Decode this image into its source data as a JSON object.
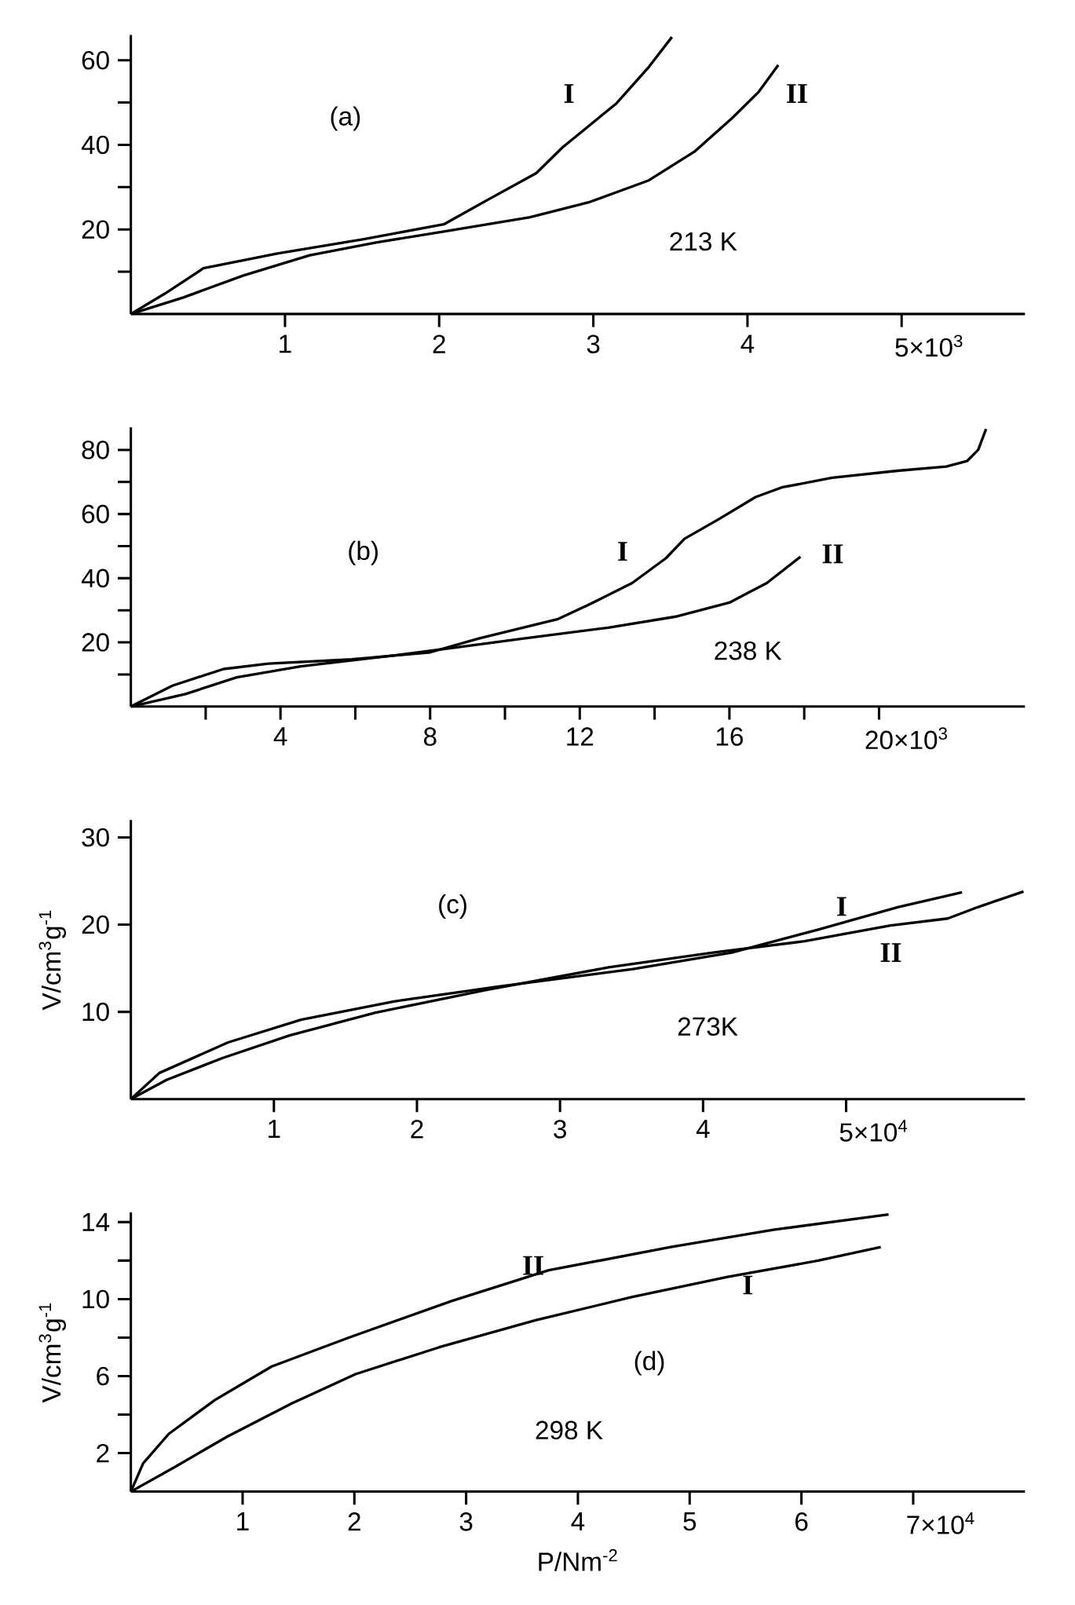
{
  "chart_data": [
    {
      "type": "line",
      "annotations": [
        "(a)",
        "213 K",
        "×10$^{3}$"
      ],
      "xlim": [
        0,
        5.8
      ],
      "ylim": [
        0,
        66
      ],
      "xticks": [
        1,
        2,
        3,
        4,
        5
      ],
      "yticks": [
        20,
        40,
        60
      ],
      "series": [
        {
          "name": "I",
          "color": "#000000",
          "x": [
            0,
            0.22,
            0.47,
            0.95,
            1.51,
            2.03,
            2.33,
            2.63,
            2.8,
            3.15,
            3.36,
            3.51
          ],
          "values": [
            0,
            4.8,
            10.8,
            14.3,
            17.7,
            21.2,
            27.3,
            33.3,
            39.4,
            49.8,
            58.4,
            65.5
          ]
        },
        {
          "name": "II",
          "color": "#000000",
          "x": [
            0,
            0.34,
            0.73,
            1.16,
            1.59,
            2.03,
            2.59,
            2.97,
            3.36,
            3.66,
            3.9,
            4.07,
            4.2
          ],
          "values": [
            0,
            3.9,
            9.1,
            13.9,
            16.9,
            19.5,
            22.9,
            26.4,
            31.6,
            38.5,
            46.3,
            52.4,
            58.9
          ]
        }
      ]
    },
    {
      "type": "line",
      "annotations": [
        "(b)",
        "238 K",
        "×10$^{3}$"
      ],
      "xlim": [
        0,
        23.9
      ],
      "ylim": [
        0,
        87
      ],
      "xticks": [
        4,
        8,
        12,
        16,
        20
      ],
      "yticks": [
        20,
        40,
        60,
        80
      ],
      "series": [
        {
          "name": "I",
          "color": "#000000",
          "x": [
            0,
            1.11,
            2.48,
            3.68,
            5.9,
            8.0,
            9.3,
            11.4,
            12.2,
            13.4,
            14.3,
            14.8,
            15.7,
            16.7,
            17.4,
            18.75,
            20.5,
            21.8,
            22.35,
            22.65,
            22.86
          ],
          "values": [
            0,
            6.5,
            11.7,
            13.4,
            14.7,
            16.9,
            21.2,
            27.2,
            31.5,
            38.5,
            46.2,
            52.3,
            58.3,
            65.3,
            68.3,
            71.3,
            73.5,
            74.8,
            76.5,
            80,
            86.5
          ]
        },
        {
          "name": "II",
          "color": "#000000",
          "x": [
            0,
            1.46,
            2.83,
            4.54,
            7.1,
            8.8,
            10.5,
            12.76,
            14.6,
            16.0,
            17.0,
            17.9
          ],
          "values": [
            0,
            3.9,
            9.1,
            12.5,
            16.0,
            18.6,
            21.2,
            24.6,
            28.1,
            32.4,
            38.5,
            46.7
          ]
        }
      ]
    },
    {
      "type": "line",
      "annotations": [
        "(c)",
        "273K",
        "×10$^{4}$"
      ],
      "ylabel": "V/cm$^{3}$g$^{-1}$",
      "xlim": [
        0,
        6.25
      ],
      "ylim": [
        0,
        32
      ],
      "xticks": [
        1,
        2,
        3,
        4,
        5
      ],
      "yticks": [
        10,
        20,
        30
      ],
      "series": [
        {
          "name": "I",
          "color": "#000000",
          "x": [
            0,
            0.2,
            0.68,
            1.19,
            1.84,
            2.57,
            3.51,
            4.2,
            4.8,
            5.36,
            5.81
          ],
          "values": [
            0,
            3.0,
            6.5,
            9.1,
            11.2,
            12.9,
            14.9,
            16.8,
            19.4,
            22.0,
            23.7
          ]
        },
        {
          "name": "II",
          "color": "#000000",
          "x": [
            0,
            0.25,
            0.64,
            1.11,
            1.71,
            2.48,
            3.34,
            4.07,
            4.71,
            5.31,
            5.71,
            5.92,
            6.24
          ],
          "values": [
            0,
            2.2,
            4.7,
            7.3,
            9.9,
            12.5,
            15.1,
            16.8,
            18.1,
            19.9,
            20.7,
            22.0,
            23.8
          ]
        }
      ]
    },
    {
      "type": "line",
      "annotations": [
        "(d)",
        "298 K",
        "×10$^{4}$"
      ],
      "ylabel": "V/cm$^{3}$g$^{-1}$",
      "xlabel": "P/Nm$^{-2}$",
      "xlim": [
        0,
        8
      ],
      "ylim": [
        0,
        14.5
      ],
      "xticks": [
        1,
        2,
        3,
        4,
        5,
        6,
        7
      ],
      "yticks": [
        2,
        6,
        10,
        14
      ],
      "series": [
        {
          "name": "I",
          "color": "#000000",
          "x": [
            0,
            0.4,
            0.86,
            1.44,
            2.01,
            2.76,
            3.62,
            4.48,
            5.34,
            6.15,
            6.71
          ],
          "values": [
            0,
            1.3,
            2.85,
            4.58,
            6.1,
            7.5,
            8.9,
            10.1,
            11.15,
            12.0,
            12.7
          ]
        },
        {
          "name": "II",
          "color": "#000000",
          "x": [
            0,
            0.11,
            0.34,
            0.75,
            1.26,
            1.95,
            2.87,
            3.74,
            4.83,
            5.75,
            6.78
          ],
          "values": [
            0,
            1.47,
            3.0,
            4.75,
            6.5,
            8.0,
            9.9,
            11.5,
            12.7,
            13.6,
            14.4
          ]
        }
      ]
    }
  ]
}
